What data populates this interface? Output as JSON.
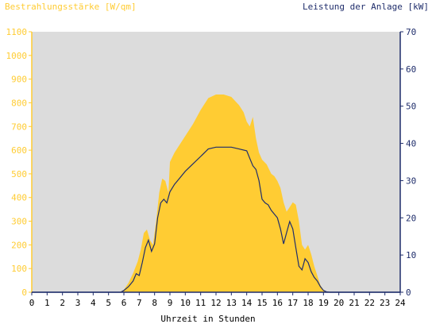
{
  "colors": {
    "background": "#ffffff",
    "plot_background": "#dcdcdc",
    "irradiance": "#ffcc33",
    "power": "#1f2d6b",
    "axis_text_left": "#ffcc33",
    "axis_text_right": "#1f2d6b",
    "axis_text_bottom": "#000000"
  },
  "chart_data": {
    "type": "area",
    "ylabel_left": "Bestrahlungsstärke [W/qm]",
    "ylabel_right": "Leistung der Anlage [kW]",
    "xlabel": "Uhrzeit in Stunden",
    "xlim": [
      0,
      24
    ],
    "ylim_left": [
      0,
      1100
    ],
    "ylim_right": [
      0,
      70
    ],
    "xticks": [
      "0",
      "1",
      "2",
      "3",
      "4",
      "5",
      "6",
      "7",
      "8",
      "9",
      "10",
      "11",
      "12",
      "13",
      "14",
      "15",
      "16",
      "17",
      "18",
      "19",
      "20",
      "21",
      "22",
      "23",
      "24"
    ],
    "yticks_left": [
      "0",
      "100",
      "200",
      "300",
      "400",
      "500",
      "600",
      "700",
      "800",
      "900",
      "1000",
      "1100"
    ],
    "yticks_right": [
      "0",
      "10",
      "20",
      "30",
      "40",
      "50",
      "60",
      "70"
    ],
    "grid": false,
    "series": [
      {
        "name": "Bestrahlungsstärke [W/qm]",
        "axis": "left",
        "style": "area",
        "x": [
          0,
          5.7,
          6.0,
          6.3,
          6.6,
          6.9,
          7.1,
          7.3,
          7.5,
          7.7,
          7.9,
          8.1,
          8.3,
          8.5,
          8.7,
          8.9,
          9.0,
          9.3,
          9.6,
          10.0,
          10.5,
          11.0,
          11.5,
          12.0,
          12.5,
          13.0,
          13.5,
          13.8,
          14.0,
          14.2,
          14.4,
          14.6,
          14.8,
          15.0,
          15.3,
          15.6,
          15.8,
          16.0,
          16.2,
          16.4,
          16.6,
          16.8,
          17.0,
          17.2,
          17.4,
          17.6,
          17.8,
          18.0,
          18.2,
          18.4,
          18.6,
          18.8,
          19.0,
          19.2,
          19.5,
          24
        ],
        "y": [
          0,
          0,
          10,
          40,
          80,
          130,
          180,
          250,
          265,
          220,
          200,
          300,
          420,
          480,
          470,
          420,
          550,
          590,
          620,
          660,
          710,
          770,
          820,
          835,
          835,
          825,
          790,
          760,
          720,
          700,
          740,
          650,
          590,
          560,
          540,
          500,
          490,
          470,
          440,
          380,
          340,
          360,
          380,
          370,
          300,
          200,
          180,
          200,
          160,
          110,
          70,
          30,
          10,
          3,
          0,
          0
        ]
      },
      {
        "name": "Leistung der Anlage [kW]",
        "axis": "right",
        "style": "line",
        "x": [
          0,
          5.8,
          6.0,
          6.3,
          6.6,
          6.8,
          7.0,
          7.2,
          7.4,
          7.6,
          7.8,
          8.0,
          8.2,
          8.4,
          8.6,
          8.8,
          9.0,
          9.3,
          9.6,
          10.0,
          10.5,
          11.0,
          11.5,
          12.0,
          12.5,
          13.0,
          13.5,
          14.0,
          14.2,
          14.4,
          14.6,
          14.8,
          15.0,
          15.2,
          15.4,
          15.6,
          15.8,
          16.0,
          16.2,
          16.4,
          16.6,
          16.8,
          17.0,
          17.2,
          17.4,
          17.6,
          17.8,
          18.0,
          18.2,
          18.4,
          18.6,
          18.8,
          19.0,
          19.2,
          19.4,
          24
        ],
        "y": [
          0,
          0,
          0.5,
          1.5,
          3,
          5,
          4.5,
          8,
          12,
          14,
          11,
          13,
          20,
          24,
          25,
          24,
          27,
          29,
          30.5,
          32.5,
          34.5,
          36.5,
          38.5,
          39,
          39,
          39,
          38.5,
          38,
          36,
          34,
          33,
          30,
          25,
          24,
          23.5,
          22,
          21,
          20,
          17,
          13,
          16,
          19,
          17,
          12,
          7,
          6,
          9,
          8,
          5.5,
          4,
          3,
          1.5,
          0.5,
          0.1,
          0,
          0
        ]
      }
    ]
  }
}
